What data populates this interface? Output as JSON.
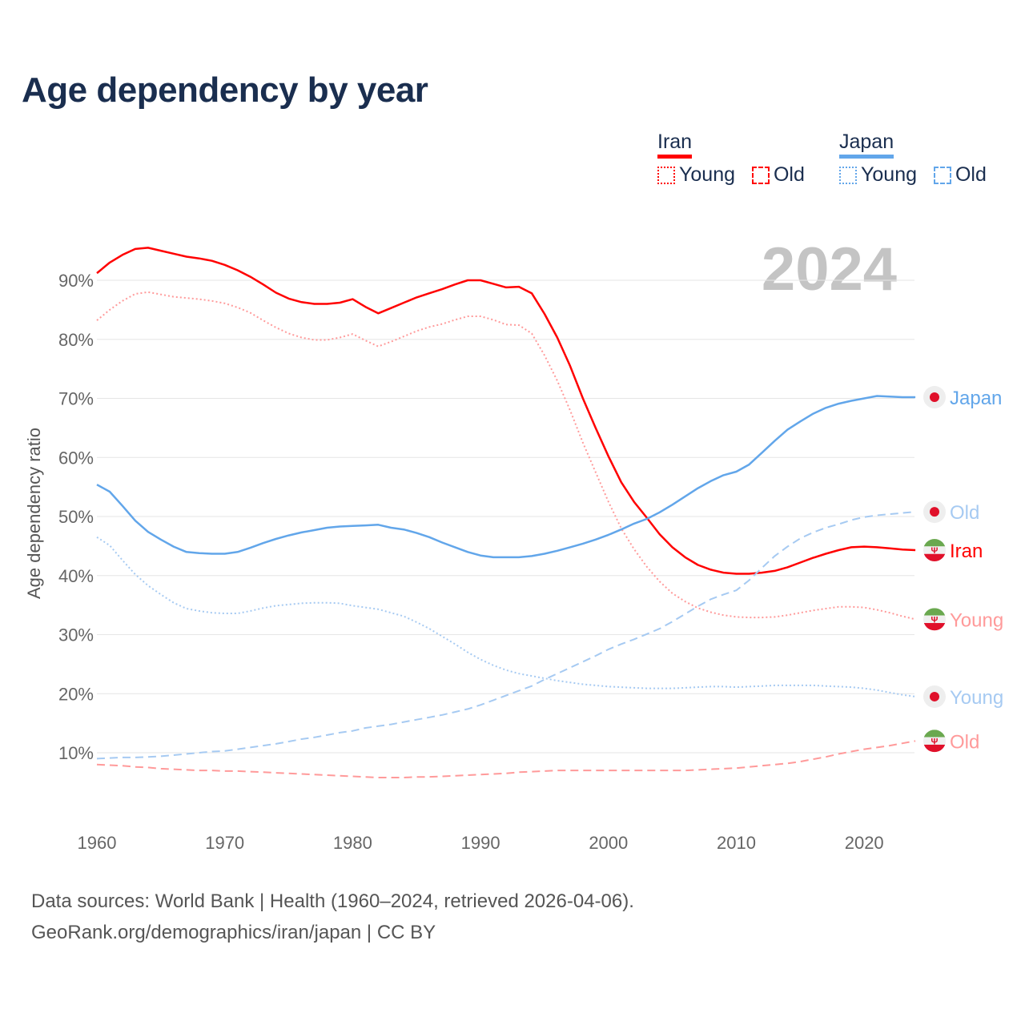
{
  "title": "Age dependency by year",
  "year_watermark": "2024",
  "source_lines": [
    "Data sources: World Bank | Health (1960–2024, retrieved 2026-04-06).",
    "GeoRank.org/demographics/iran/japan | CC BY"
  ],
  "legend": [
    {
      "country": "Iran",
      "color": "#ff0000",
      "items": [
        "Young",
        "Old"
      ]
    },
    {
      "country": "Japan",
      "color": "#62a6ea",
      "items": [
        "Young",
        "Old"
      ]
    }
  ],
  "chart_data": {
    "type": "line",
    "title": "Age dependency by year",
    "ylabel": "Age dependency ratio",
    "xlabel": "",
    "xlim": [
      1960,
      2024
    ],
    "ylim": [
      0,
      95
    ],
    "grid": true,
    "x_start": 1960,
    "xticks": [
      "1960",
      "1970",
      "1980",
      "1990",
      "2000",
      "2010",
      "2020"
    ],
    "yticks": [
      "10%",
      "20%",
      "30%",
      "40%",
      "50%",
      "60%",
      "70%",
      "80%",
      "90%"
    ],
    "series": [
      {
        "name": "Iran",
        "end_label": "Iran",
        "country": "iran",
        "style": "solid",
        "color": "#ff0000",
        "values": [
          91.2,
          93.0,
          94.3,
          95.3,
          95.5,
          95.0,
          94.5,
          94.0,
          93.7,
          93.3,
          92.6,
          91.7,
          90.6,
          89.3,
          87.9,
          86.9,
          86.3,
          86.0,
          86.0,
          86.2,
          86.8,
          85.5,
          84.4,
          85.3,
          86.2,
          87.1,
          87.8,
          88.5,
          89.3,
          90.0,
          90.0,
          89.4,
          88.8,
          88.9,
          87.8,
          84.3,
          80.3,
          75.5,
          70.0,
          65.0,
          60.2,
          55.8,
          52.5,
          49.8,
          47.0,
          44.8,
          43.1,
          41.8,
          41.0,
          40.5,
          40.3,
          40.3,
          40.5,
          40.8,
          41.4,
          42.2,
          43.0,
          43.7,
          44.3,
          44.8,
          44.9,
          44.8,
          44.6,
          44.4,
          44.3
        ]
      },
      {
        "name": "Iran Young",
        "end_label": "Young",
        "country": "iran",
        "style": "dotted",
        "color": "#ff9a9a",
        "values": [
          83.2,
          85.0,
          86.5,
          87.7,
          88.0,
          87.6,
          87.2,
          87.0,
          86.8,
          86.5,
          86.1,
          85.4,
          84.5,
          83.2,
          82.0,
          81.0,
          80.3,
          79.9,
          79.9,
          80.3,
          80.9,
          79.8,
          78.8,
          79.6,
          80.5,
          81.4,
          82.1,
          82.6,
          83.3,
          83.9,
          83.9,
          83.3,
          82.5,
          82.4,
          81.0,
          77.3,
          73.0,
          68.0,
          62.5,
          57.5,
          52.5,
          48.0,
          44.5,
          41.5,
          39.0,
          37.0,
          35.6,
          34.5,
          33.8,
          33.3,
          33.0,
          32.9,
          32.9,
          33.0,
          33.3,
          33.7,
          34.1,
          34.4,
          34.7,
          34.7,
          34.6,
          34.2,
          33.7,
          33.1,
          32.6
        ]
      },
      {
        "name": "Iran Old",
        "end_label": "Old",
        "country": "iran",
        "style": "dashed",
        "color": "#ff9a9a",
        "values": [
          8.0,
          7.9,
          7.8,
          7.6,
          7.5,
          7.3,
          7.2,
          7.1,
          7.0,
          7.0,
          6.9,
          6.9,
          6.8,
          6.7,
          6.6,
          6.5,
          6.4,
          6.3,
          6.2,
          6.1,
          6.0,
          5.9,
          5.8,
          5.8,
          5.8,
          5.9,
          5.9,
          6.0,
          6.1,
          6.2,
          6.3,
          6.4,
          6.5,
          6.7,
          6.8,
          6.9,
          7.0,
          7.0,
          7.0,
          7.0,
          7.0,
          7.0,
          7.0,
          7.0,
          7.0,
          7.0,
          7.0,
          7.1,
          7.2,
          7.3,
          7.4,
          7.6,
          7.8,
          8.0,
          8.2,
          8.5,
          8.9,
          9.3,
          9.8,
          10.2,
          10.6,
          10.9,
          11.2,
          11.6,
          12.0
        ]
      },
      {
        "name": "Japan",
        "end_label": "Japan",
        "country": "japan",
        "style": "solid",
        "color": "#62a6ea",
        "values": [
          55.4,
          54.2,
          51.8,
          49.3,
          47.4,
          46.1,
          44.9,
          44.0,
          43.8,
          43.7,
          43.7,
          44.0,
          44.7,
          45.5,
          46.2,
          46.8,
          47.3,
          47.7,
          48.1,
          48.3,
          48.4,
          48.5,
          48.6,
          48.1,
          47.8,
          47.2,
          46.5,
          45.6,
          44.8,
          44.0,
          43.4,
          43.1,
          43.1,
          43.1,
          43.3,
          43.7,
          44.2,
          44.8,
          45.4,
          46.1,
          46.9,
          47.8,
          48.8,
          49.6,
          50.7,
          52.0,
          53.4,
          54.8,
          56.0,
          57.0,
          57.6,
          58.8,
          60.8,
          62.8,
          64.7,
          66.1,
          67.4,
          68.4,
          69.1,
          69.6,
          70.0,
          70.4,
          70.3,
          70.2,
          70.2
        ]
      },
      {
        "name": "Japan Young",
        "end_label": "Young",
        "country": "japan",
        "style": "dotted",
        "color": "#a6caf2",
        "values": [
          46.5,
          45.1,
          42.6,
          40.2,
          38.3,
          36.8,
          35.4,
          34.4,
          34.0,
          33.7,
          33.6,
          33.6,
          34.0,
          34.5,
          34.9,
          35.1,
          35.3,
          35.4,
          35.4,
          35.3,
          34.9,
          34.6,
          34.3,
          33.7,
          33.1,
          32.1,
          31.0,
          29.7,
          28.4,
          27.0,
          25.8,
          24.8,
          24.0,
          23.4,
          23.0,
          22.6,
          22.2,
          21.9,
          21.6,
          21.4,
          21.2,
          21.1,
          21.0,
          20.9,
          20.9,
          20.9,
          21.0,
          21.1,
          21.2,
          21.2,
          21.1,
          21.2,
          21.3,
          21.4,
          21.4,
          21.4,
          21.4,
          21.3,
          21.2,
          21.1,
          20.9,
          20.6,
          20.2,
          19.8,
          19.5
        ]
      },
      {
        "name": "Japan Old",
        "end_label": "Old",
        "country": "japan",
        "style": "dashed",
        "color": "#a6caf2",
        "values": [
          9.0,
          9.1,
          9.2,
          9.2,
          9.3,
          9.4,
          9.6,
          9.8,
          10.0,
          10.2,
          10.3,
          10.6,
          10.9,
          11.2,
          11.5,
          11.9,
          12.3,
          12.6,
          13.0,
          13.4,
          13.7,
          14.2,
          14.5,
          14.8,
          15.2,
          15.6,
          16.0,
          16.4,
          16.9,
          17.4,
          18.1,
          18.9,
          19.7,
          20.5,
          21.3,
          22.4,
          23.4,
          24.4,
          25.4,
          26.4,
          27.5,
          28.4,
          29.2,
          30.1,
          31.0,
          32.2,
          33.5,
          34.8,
          36.0,
          36.8,
          37.5,
          39.2,
          41.3,
          43.3,
          44.9,
          46.3,
          47.3,
          48.1,
          48.7,
          49.4,
          49.9,
          50.2,
          50.4,
          50.6,
          50.8
        ]
      }
    ]
  }
}
